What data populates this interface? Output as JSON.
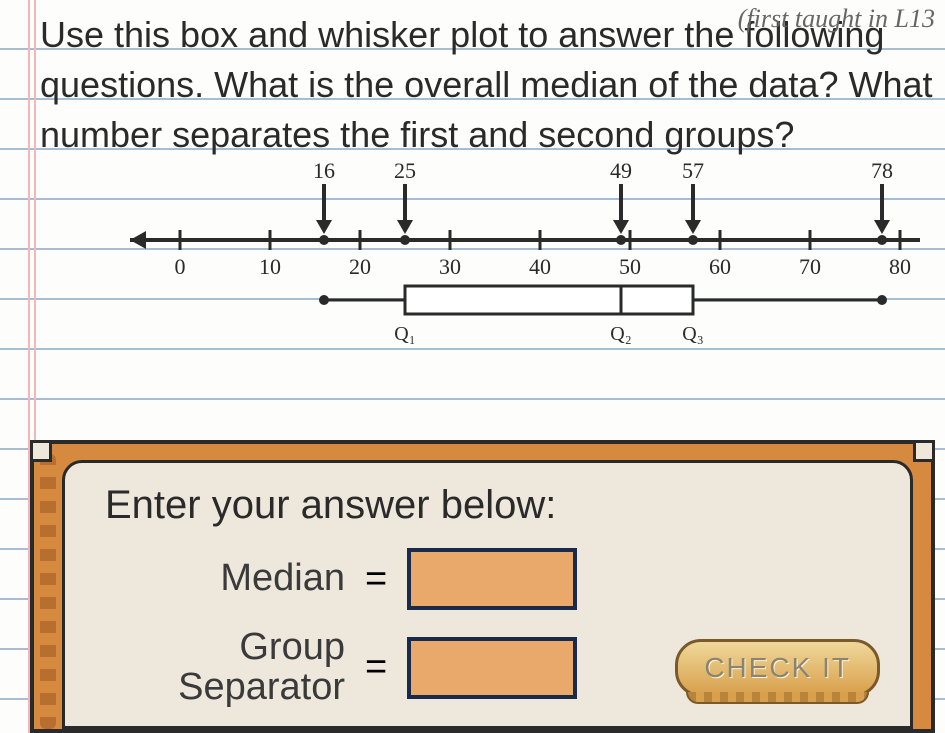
{
  "header_note": "(first taught in L13",
  "question": "Use this box and whisker plot to answer the following questions. What is the overall median of the data? What number separates the first and second groups?",
  "boxplot": {
    "type": "boxplot",
    "axis": {
      "min": 0,
      "max": 80,
      "tick_step": 10,
      "ticks": [
        0,
        10,
        20,
        30,
        40,
        50,
        60,
        70,
        80
      ]
    },
    "arrow_values": [
      16,
      25,
      49,
      57,
      78
    ],
    "five_number": {
      "min": 16,
      "q1": 25,
      "median": 49,
      "q3": 57,
      "max": 78
    },
    "q_labels": {
      "q1": "Q₁",
      "q2": "Q₂",
      "q3": "Q₃"
    },
    "colors": {
      "ink": "#2a2a2a",
      "box_fill": "#ffffff"
    },
    "stroke_width": 3
  },
  "answer_panel": {
    "prompt": "Enter your answer below:",
    "rows": [
      {
        "label": "Median",
        "value": ""
      },
      {
        "label": "Group\nSeparator",
        "value": ""
      }
    ],
    "button": "CHECK IT",
    "colors": {
      "frame": "#d68a3f",
      "inner": "#ede7dc",
      "input_fill": "#e9a96a",
      "input_border": "#1a2a4a",
      "border": "#2a2a2a"
    }
  }
}
